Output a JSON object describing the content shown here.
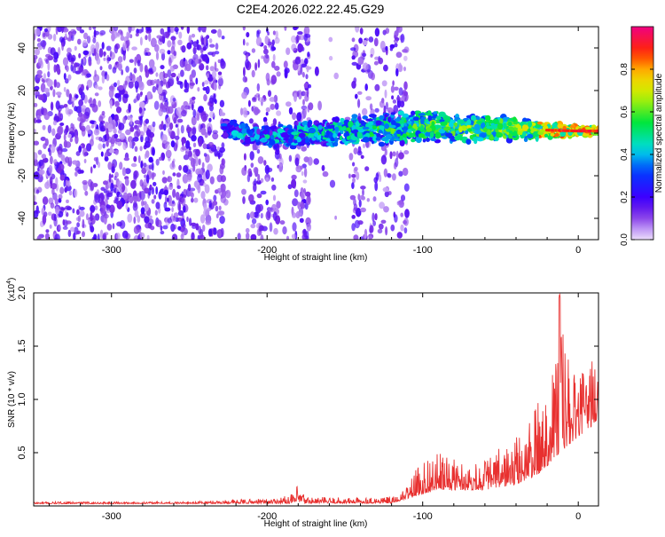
{
  "title": "C2E4.2026.022.22.45.G29",
  "chart_data": [
    {
      "type": "heatmap",
      "xlabel": "Height of straight line (km)",
      "ylabel": "Frequency (Hz)",
      "xlim": [
        -350,
        13
      ],
      "ylim": [
        -50,
        50
      ],
      "xticks": [
        -300,
        -200,
        -100,
        0
      ],
      "yticks": [
        -40,
        -20,
        0,
        20,
        40
      ],
      "colorbar": {
        "label": "Normalized spectral amplitude",
        "range": [
          0,
          1
        ],
        "ticks": [
          0.0,
          0.2,
          0.4,
          0.6,
          0.8
        ]
      },
      "description": {
        "noise_region_x": [
          -350,
          -115
        ],
        "signal_start_x": -228,
        "signal_center_freq_hz": [
          [
            -228,
            2
          ],
          [
            -200,
            -2
          ],
          [
            -150,
            1
          ],
          [
            -100,
            3
          ],
          [
            -50,
            2
          ],
          [
            0,
            1
          ],
          [
            13,
            1
          ]
        ],
        "signal_bandwidth_hz": [
          [
            -228,
            8
          ],
          [
            -100,
            14
          ],
          [
            -50,
            10
          ],
          [
            0,
            4
          ]
        ]
      },
      "grid": false
    },
    {
      "type": "line",
      "xlabel": "Height of straight line (km)",
      "ylabel": "SNR (10 * v/v)",
      "yscale_label": "(x10",
      "yscale_exp": "4",
      "xlim": [
        -350,
        13
      ],
      "ylim": [
        0,
        20000
      ],
      "xticks": [
        -300,
        -200,
        -100,
        0
      ],
      "yticks": [
        5000,
        10000,
        15000,
        20000
      ],
      "ytick_labels": [
        "0.5",
        "1.0",
        "1.5",
        "2.0"
      ],
      "series": [
        {
          "color": "#e8302f",
          "envelope": [
            [
              -350,
              400
            ],
            [
              -250,
              400
            ],
            [
              -225,
              600
            ],
            [
              -200,
              700
            ],
            [
              -185,
              1000
            ],
            [
              -180,
              2000
            ],
            [
              -175,
              900
            ],
            [
              -150,
              800
            ],
            [
              -115,
              900
            ],
            [
              -108,
              2500
            ],
            [
              -100,
              4500
            ],
            [
              -90,
              5000
            ],
            [
              -80,
              4500
            ],
            [
              -70,
              4000
            ],
            [
              -60,
              4500
            ],
            [
              -50,
              5500
            ],
            [
              -40,
              6500
            ],
            [
              -30,
              8500
            ],
            [
              -20,
              12000
            ],
            [
              -15,
              16000
            ],
            [
              -12,
              20000
            ],
            [
              -8,
              15000
            ],
            [
              -5,
              13000
            ],
            [
              0,
              12000
            ],
            [
              5,
              13000
            ],
            [
              10,
              15000
            ],
            [
              13,
              12000
            ]
          ],
          "baseline": [
            [
              -350,
              200
            ],
            [
              -120,
              250
            ],
            [
              -105,
              900
            ],
            [
              -90,
              1500
            ],
            [
              -60,
              1500
            ],
            [
              -40,
              2000
            ],
            [
              -25,
              3000
            ],
            [
              -15,
              4500
            ],
            [
              0,
              6500
            ],
            [
              13,
              8000
            ]
          ]
        }
      ],
      "grid": false
    }
  ]
}
